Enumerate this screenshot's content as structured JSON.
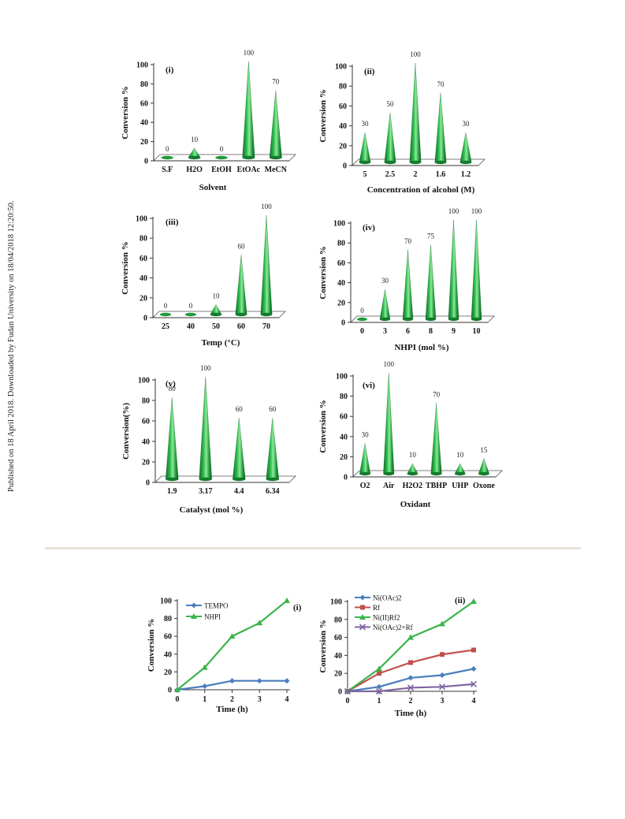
{
  "side_note": "Published on 18 April 2018. Downloaded by Fudan University on 18/04/2018 12:20:50.",
  "colors": {
    "cone": "#1f9a3a",
    "cone_light": "#7fdc8f",
    "floor": "#ffffff",
    "axis": "#333333",
    "tempo": "#4a7ebb",
    "nhpi": "#3cb44b",
    "rf": "#c0504d",
    "ni_ii_rf2": "#3cb44b",
    "niacrf": "#8064a2"
  },
  "chart_data": [
    {
      "type": "bar",
      "panel": "(i)",
      "xlabel": "Solvent",
      "ylabel": "Conversion %",
      "ylim": [
        0,
        100
      ],
      "yticks": [
        "0",
        "20",
        "40",
        "60",
        "80",
        "100"
      ],
      "categories": [
        "S.F",
        "H2O",
        "EtOH",
        "EtOAc",
        "MeCN"
      ],
      "values": [
        0,
        10,
        0,
        100,
        70
      ],
      "data_labels": [
        "0",
        "10",
        "0",
        "100",
        "70"
      ]
    },
    {
      "type": "bar",
      "panel": "(ii)",
      "xlabel": "Concentration of alcohol (M)",
      "ylabel": "Conversion %",
      "ylim": [
        0,
        100
      ],
      "yticks": [
        "0",
        "20",
        "40",
        "60",
        "80",
        "100"
      ],
      "categories": [
        "5",
        "2.5",
        "2",
        "1.6",
        "1.2"
      ],
      "values": [
        30,
        50,
        100,
        70,
        30
      ],
      "data_labels": [
        "30",
        "50",
        "100",
        "70",
        "30"
      ]
    },
    {
      "type": "bar",
      "panel": "(iii)",
      "xlabel": "Temp (°C)",
      "ylabel": "Conversion %",
      "ylim": [
        0,
        100
      ],
      "yticks": [
        "0",
        "20",
        "40",
        "60",
        "80",
        "100"
      ],
      "categories": [
        "25",
        "40",
        "50",
        "60",
        "70"
      ],
      "values": [
        0,
        0,
        10,
        60,
        100
      ],
      "data_labels": [
        "0",
        "0",
        "10",
        "60",
        "100"
      ]
    },
    {
      "type": "bar",
      "panel": "(iv)",
      "xlabel": "NHPI (mol %)",
      "ylabel": "Conversion %",
      "ylim": [
        0,
        100
      ],
      "yticks": [
        "0",
        "20",
        "40",
        "60",
        "80",
        "100"
      ],
      "categories": [
        "0",
        "3",
        "6",
        "8",
        "9",
        "10"
      ],
      "values": [
        0,
        30,
        70,
        75,
        100,
        100
      ],
      "data_labels": [
        "0",
        "30",
        "70",
        "75",
        "100",
        "100"
      ]
    },
    {
      "type": "bar",
      "panel": "(v)",
      "xlabel": "Catalyst (mol %)",
      "ylabel": "Conversion(%)",
      "ylim": [
        0,
        100
      ],
      "yticks": [
        "0",
        "20",
        "40",
        "60",
        "80",
        "100"
      ],
      "categories": [
        "1.9",
        "3.17",
        "4.4",
        "6.34"
      ],
      "values": [
        80,
        100,
        60,
        60
      ],
      "data_labels": [
        "80",
        "100",
        "60",
        "60"
      ]
    },
    {
      "type": "bar",
      "panel": "(vi)",
      "xlabel": "Oxidant",
      "ylabel": "Conversion %",
      "ylim": [
        0,
        100
      ],
      "yticks": [
        "0",
        "20",
        "40",
        "60",
        "80",
        "100"
      ],
      "categories": [
        "O2",
        "Air",
        "H2O2",
        "TBHP",
        "UHP",
        "Oxone"
      ],
      "values": [
        30,
        100,
        10,
        70,
        10,
        15
      ],
      "data_labels": [
        "30",
        "100",
        "10",
        "70",
        "10",
        "15"
      ]
    },
    {
      "type": "line",
      "panel": "(i)",
      "xlabel": "Time (h)",
      "ylabel": "Conversion %",
      "ylim": [
        0,
        100
      ],
      "x": [
        0,
        1,
        2,
        3,
        4
      ],
      "xticks": [
        "0",
        "1",
        "2",
        "3",
        "4"
      ],
      "yticks": [
        "0",
        "20",
        "40",
        "60",
        "80",
        "100"
      ],
      "legend_position": "top-left",
      "series": [
        {
          "name": "TEMPO",
          "marker": "diamond",
          "values": [
            0,
            4,
            10,
            10,
            10
          ]
        },
        {
          "name": "NHPI",
          "marker": "triangle",
          "values": [
            0,
            25,
            60,
            75,
            100
          ]
        }
      ]
    },
    {
      "type": "line",
      "panel": "(ii)",
      "xlabel": "Time (h)",
      "ylabel": "Conversion %",
      "ylim": [
        0,
        100
      ],
      "x": [
        0,
        1,
        2,
        3,
        4
      ],
      "xticks": [
        "0",
        "1",
        "2",
        "3",
        "4"
      ],
      "yticks": [
        "0",
        "20",
        "40",
        "60",
        "80",
        "100"
      ],
      "legend_position": "top-left",
      "series": [
        {
          "name": "Ni(OAc)2",
          "marker": "diamond",
          "values": [
            0,
            5,
            15,
            18,
            25
          ]
        },
        {
          "name": "Rf",
          "marker": "square",
          "values": [
            0,
            20,
            32,
            41,
            46
          ]
        },
        {
          "name": "Ni(II)Rf2",
          "marker": "triangle",
          "values": [
            0,
            25,
            60,
            75,
            100
          ]
        },
        {
          "name": "Ni(OAc)2+Rf",
          "marker": "x",
          "values": [
            0,
            0,
            4,
            5,
            8
          ]
        }
      ]
    }
  ]
}
